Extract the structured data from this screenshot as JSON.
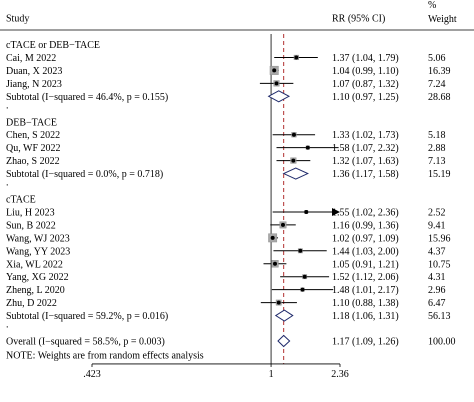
{
  "chart_data": {
    "type": "forest",
    "headers": {
      "study": "Study",
      "effect": "RR (95% CI)",
      "weight": "%\nWeight"
    },
    "reference_line": 1,
    "xaxis": {
      "ticks": [
        ".423",
        "1",
        "2.36"
      ],
      "min": 0.423,
      "max": 2.36,
      "scale": "log"
    },
    "groups": [
      {
        "name": "cTACE or DEB−TACE",
        "studies": [
          {
            "name": "Cai, M 2022",
            "rr": 1.37,
            "lo": 1.04,
            "hi": 1.79,
            "label": "1.37 (1.04, 1.79)",
            "weight": "5.06",
            "w": 5.06
          },
          {
            "name": "Duan, X 2023",
            "rr": 1.04,
            "lo": 0.99,
            "hi": 1.1,
            "label": "1.04 (0.99, 1.10)",
            "weight": "16.39",
            "w": 16.39
          },
          {
            "name": "Jiang, N 2023",
            "rr": 1.07,
            "lo": 0.87,
            "hi": 1.32,
            "label": "1.07 (0.87, 1.32)",
            "weight": "7.24",
            "w": 7.24
          }
        ],
        "subtotal": {
          "name": "Subtotal  (I−squared = 46.4%, p = 0.155)",
          "rr": 1.1,
          "lo": 0.97,
          "hi": 1.25,
          "label": "1.10 (0.97, 1.25)",
          "weight": "28.68"
        }
      },
      {
        "name": "DEB−TACE",
        "studies": [
          {
            "name": "Chen, S 2022",
            "rr": 1.33,
            "lo": 1.02,
            "hi": 1.73,
            "label": "1.33 (1.02, 1.73)",
            "weight": "5.18",
            "w": 5.18
          },
          {
            "name": "Qu, WF 2022",
            "rr": 1.58,
            "lo": 1.07,
            "hi": 2.32,
            "label": "1.58 (1.07, 2.32)",
            "weight": "2.88",
            "w": 2.88
          },
          {
            "name": "Zhao, S 2022",
            "rr": 1.32,
            "lo": 1.07,
            "hi": 1.63,
            "label": "1.32 (1.07, 1.63)",
            "weight": "7.13",
            "w": 7.13
          }
        ],
        "subtotal": {
          "name": "Subtotal  (I−squared = 0.0%, p = 0.718)",
          "rr": 1.36,
          "lo": 1.17,
          "hi": 1.58,
          "label": "1.36 (1.17, 1.58)",
          "weight": "15.19"
        }
      },
      {
        "name": "cTACE",
        "studies": [
          {
            "name": "Liu, H 2023",
            "rr": 1.55,
            "lo": 1.02,
            "hi": 2.36,
            "label": "1.55 (1.02, 2.36)",
            "weight": "2.52",
            "w": 2.52,
            "arrow": true
          },
          {
            "name": "Sun, B 2022",
            "rr": 1.16,
            "lo": 0.99,
            "hi": 1.36,
            "label": "1.16 (0.99, 1.36)",
            "weight": "9.41",
            "w": 9.41
          },
          {
            "name": "Wang, WJ 2023",
            "rr": 1.02,
            "lo": 0.97,
            "hi": 1.09,
            "label": "1.02 (0.97, 1.09)",
            "weight": "15.96",
            "w": 15.96
          },
          {
            "name": "Wang, YY 2023",
            "rr": 1.44,
            "lo": 1.03,
            "hi": 2.0,
            "label": "1.44 (1.03, 2.00)",
            "weight": "4.37",
            "w": 4.37
          },
          {
            "name": "Xia, WL 2022",
            "rr": 1.05,
            "lo": 0.91,
            "hi": 1.21,
            "label": "1.05 (0.91, 1.21)",
            "weight": "10.75",
            "w": 10.75
          },
          {
            "name": "Yang, XG 2022",
            "rr": 1.52,
            "lo": 1.12,
            "hi": 2.06,
            "label": "1.52 (1.12, 2.06)",
            "weight": "4.31",
            "w": 4.31
          },
          {
            "name": "Zheng, L 2020",
            "rr": 1.48,
            "lo": 1.01,
            "hi": 2.17,
            "label": "1.48 (1.01, 2.17)",
            "weight": "2.96",
            "w": 2.96
          },
          {
            "name": "Zhu, D 2022",
            "rr": 1.1,
            "lo": 0.88,
            "hi": 1.38,
            "label": "1.10 (0.88, 1.38)",
            "weight": "6.47",
            "w": 6.47
          }
        ],
        "subtotal": {
          "name": "Subtotal  (I−squared = 59.2%, p = 0.016)",
          "rr": 1.18,
          "lo": 1.06,
          "hi": 1.31,
          "label": "1.18 (1.06, 1.31)",
          "weight": "56.13"
        }
      }
    ],
    "overall": {
      "name": "Overall  (I−squared = 58.5%, p = 0.003)",
      "rr": 1.17,
      "lo": 1.09,
      "hi": 1.26,
      "label": "1.17 (1.09, 1.26)",
      "weight": "100.00"
    },
    "note": "NOTE: Weights are from random effects analysis",
    "colors": {
      "diamond": "#1f2a6b",
      "dashed_line": "#b03030",
      "marker": "#000000",
      "box": "#a8a8a8"
    }
  }
}
